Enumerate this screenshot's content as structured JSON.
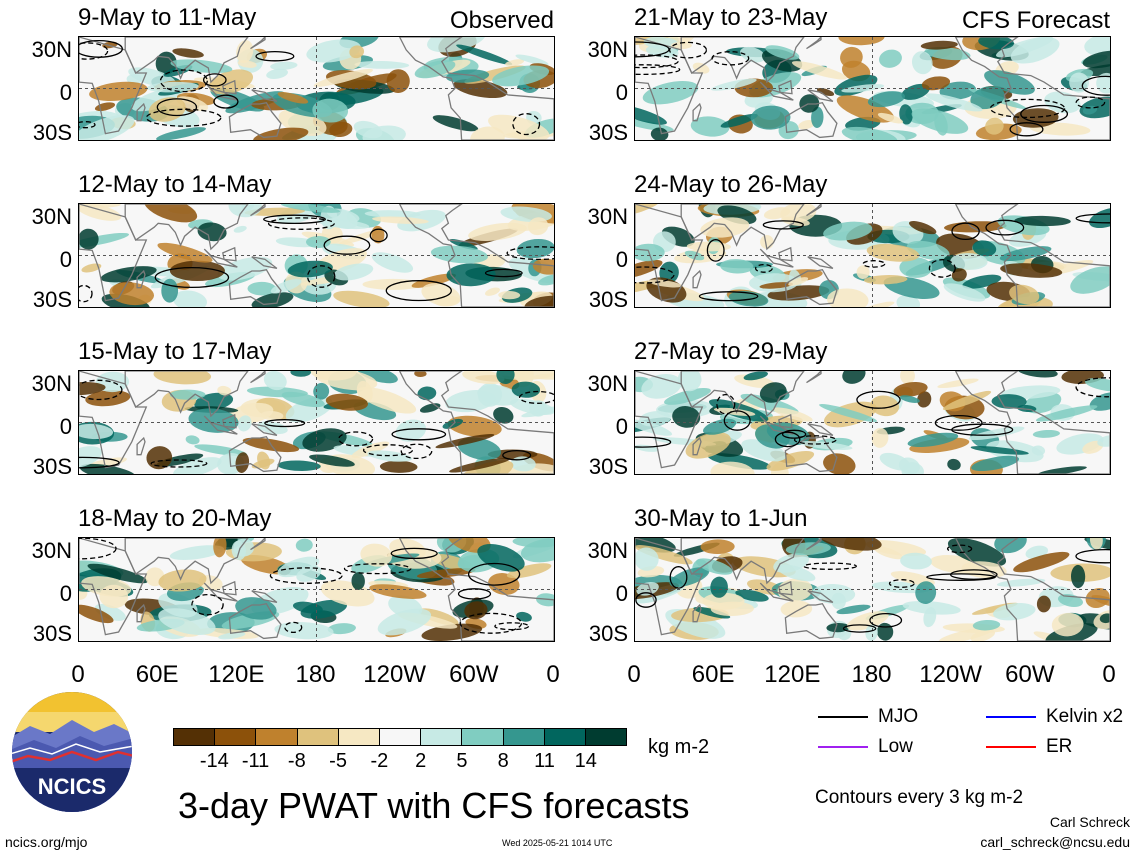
{
  "panels": [
    {
      "title": "9-May to 11-May",
      "tag": "Observed"
    },
    {
      "title": "12-May to 14-May",
      "tag": ""
    },
    {
      "title": "15-May to 17-May",
      "tag": ""
    },
    {
      "title": "18-May to 20-May",
      "tag": ""
    },
    {
      "title": "21-May to 23-May",
      "tag": "CFS Forecast"
    },
    {
      "title": "24-May to 26-May",
      "tag": ""
    },
    {
      "title": "27-May to 29-May",
      "tag": ""
    },
    {
      "title": "30-May to 1-Jun",
      "tag": ""
    }
  ],
  "lat_labels": [
    "30N",
    "0",
    "30S"
  ],
  "lon_labels": [
    "0",
    "60E",
    "120E",
    "180",
    "120W",
    "60W",
    "0"
  ],
  "colorbar": {
    "colors": [
      "#543005",
      "#8c510a",
      "#bf812d",
      "#dfc27d",
      "#f6e8c3",
      "#f7f7f7",
      "#c7eae5",
      "#80cdc1",
      "#35978f",
      "#01665e",
      "#003c30"
    ],
    "labels": [
      "-14",
      "-11",
      "-8",
      "-5",
      "-2",
      "2",
      "5",
      "8",
      "11",
      "14"
    ],
    "units": "kg m-2"
  },
  "legend": [
    {
      "label": "MJO",
      "color": "#000000"
    },
    {
      "label": "Kelvin x2",
      "color": "#0000ff"
    },
    {
      "label": "Low",
      "color": "#a020f0"
    },
    {
      "label": "ER",
      "color": "#ff0000"
    }
  ],
  "main_title": "3-day PWAT with CFS forecasts",
  "contours_note": "Contours every 3 kg m-2",
  "author": "Carl Schreck",
  "email": "carl_schreck@ncsu.edu",
  "site": "ncics.org/mjo",
  "timestamp": "Wed 2025-05-21 1014 UTC",
  "logo_text": "NCICS"
}
